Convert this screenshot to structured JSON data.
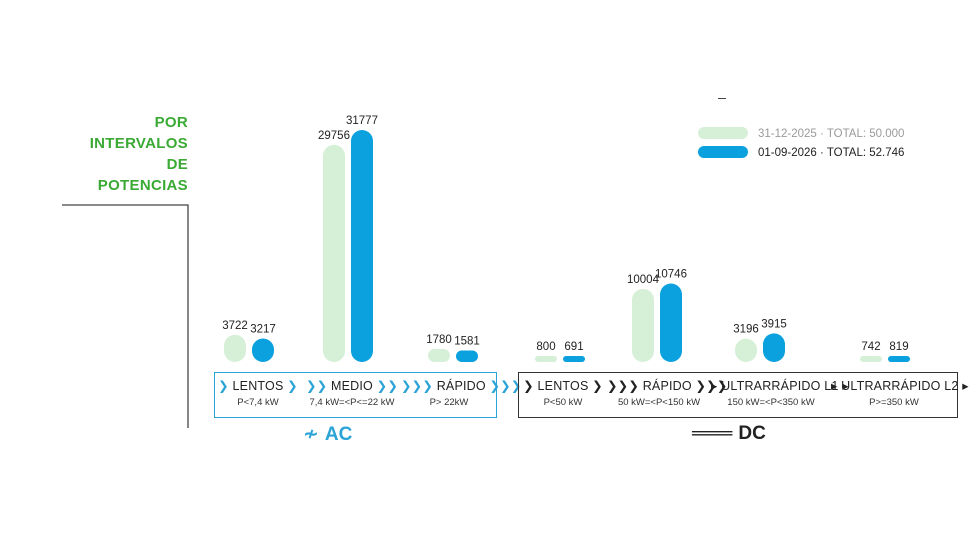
{
  "title_lines": [
    "POR",
    "INTERVALOS",
    "DE",
    "POTENCIAS"
  ],
  "colors": {
    "series1": "#d6efd7",
    "series2": "#0ba0de",
    "title": "#3aaa35",
    "ac": "#2aa3d6",
    "dc": "#222222"
  },
  "ac": {
    "label": "AC",
    "symbol": "≁",
    "categories": [
      {
        "name": "LENTOS",
        "range": "P<7,4 kW",
        "chev": "❯",
        "count": 1
      },
      {
        "name": "MEDIO",
        "range": "7,4 kW=<P<=22 kW",
        "chev": "❯",
        "count": 2
      },
      {
        "name": "RÁPIDO",
        "range": "P> 22kW",
        "chev": "❯",
        "count": 3
      }
    ]
  },
  "dc": {
    "label": "DC",
    "symbol": "═══",
    "categories": [
      {
        "name": "LENTOS",
        "range": "P<50 kW",
        "chev": "❯",
        "count": 1,
        "style": "chev"
      },
      {
        "name": "RÁPIDO",
        "range": "50 kW=<P<150 kW",
        "chev": "❯",
        "count": 3,
        "style": "chev"
      },
      {
        "name": "ULTRARRÁPIDO L1",
        "range": "150 kW=<P<350 kW",
        "chev": "▸",
        "count": 1,
        "style": "tri"
      },
      {
        "name": "ULTRARRÁPIDO L2",
        "range": "P>=350 kW",
        "chev": "▸",
        "count": 1,
        "style": "tri"
      }
    ]
  },
  "chart_data": {
    "type": "bar",
    "title": "POR INTERVALOS DE POTENCIAS",
    "categories": [
      "AC LENTOS",
      "AC MEDIO",
      "AC RÁPIDO",
      "DC LENTOS",
      "DC RÁPIDO",
      "DC ULTRARRÁPIDO L1",
      "DC ULTRARRÁPIDO L2"
    ],
    "series": [
      {
        "name": "31-12-2025 · TOTAL: 50.000",
        "values": [
          3722,
          29756,
          1780,
          800,
          10004,
          3196,
          742
        ]
      },
      {
        "name": "01-09-2026 · TOTAL: 52.746",
        "values": [
          3217,
          31777,
          1581,
          691,
          10746,
          3915,
          819
        ]
      }
    ],
    "legend_position": "top-right",
    "grid": false
  }
}
